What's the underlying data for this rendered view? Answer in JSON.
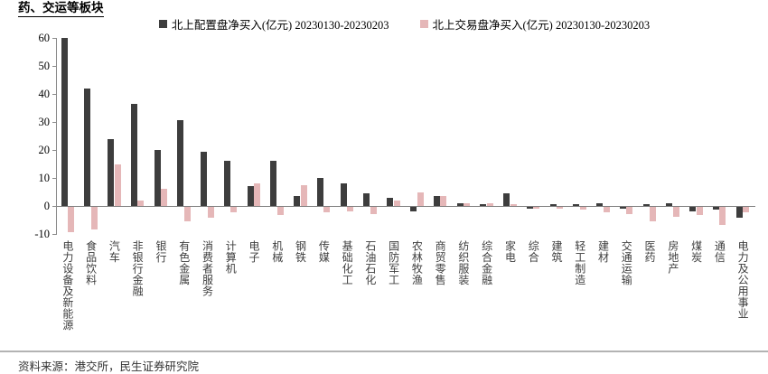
{
  "page": {
    "header_fragment": "药、交运等板块",
    "source_note": "资料来源：港交所，民生证券研究院"
  },
  "chart_data": {
    "type": "bar",
    "title": "",
    "legend_position": "top",
    "grid": false,
    "ylim": [
      -10,
      60
    ],
    "yticks": [
      60,
      50,
      40,
      30,
      20,
      10,
      0,
      -10
    ],
    "categories": [
      "电力设备及新能源",
      "食品饮料",
      "汽车",
      "非银行金融",
      "银行",
      "有色金属",
      "消费者服务",
      "计算机",
      "电子",
      "机械",
      "钢铁",
      "传媒",
      "基础化工",
      "石油石化",
      "国防军工",
      "农林牧渔",
      "商贸零售",
      "纺织服装",
      "综合金融",
      "家电",
      "综合",
      "建筑",
      "轻工制造",
      "建材",
      "交通运输",
      "医药",
      "房地产",
      "煤炭",
      "通信",
      "电力及公用事业"
    ],
    "series": [
      {
        "name": "北上配置盘净买入(亿元) 20230130-20230203",
        "color": "#3d3d3d",
        "values": [
          60,
          42,
          24,
          36.5,
          20,
          30.5,
          19.5,
          16,
          7,
          16,
          3.5,
          10,
          8,
          4.5,
          3,
          -1.5,
          3.5,
          1,
          0.5,
          4.5,
          -0.5,
          0.5,
          0.5,
          1,
          -0.5,
          0.5,
          1,
          -1.5,
          -1,
          -4
        ]
      },
      {
        "name": "北上交易盘净买入(亿元) 20230130-20230203",
        "color": "#e5b7b8",
        "values": [
          -9,
          -8,
          15,
          2,
          6,
          -5,
          -4,
          -2,
          8,
          -3,
          7.5,
          -2,
          -1.5,
          -2.5,
          2,
          5,
          3.5,
          1,
          1,
          0.5,
          -0.5,
          -0.5,
          -1,
          -2,
          -2.5,
          -5,
          -3.5,
          -3,
          -6.5,
          -2
        ]
      }
    ],
    "colors": {
      "axis": "#8a8a8a",
      "zero_line": "#7f7f7f"
    }
  }
}
